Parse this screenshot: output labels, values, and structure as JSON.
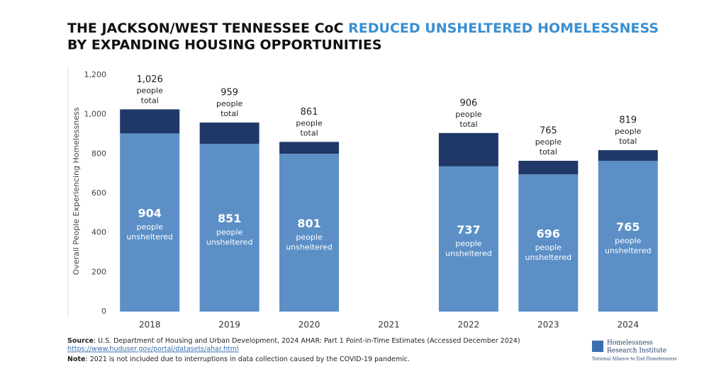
{
  "chart_data": {
    "type": "stacked-bar",
    "title": "THE JACKSON/WEST TENNESSEE CoC",
    "title_highlight": "REDUCED UNSHELTERED HOMELESSNESS",
    "title_line2": "BY EXPANDING HOUSING OPPORTUNITIES",
    "y_label": "Overall People Experiencing Homelessness",
    "categories": [
      "2018",
      "2019",
      "2020",
      "2021",
      "2022",
      "2023",
      "2024"
    ],
    "series": [
      {
        "color": "#5b8fc6",
        "values": [
          904,
          851,
          801,
          null,
          737,
          696,
          765
        ]
      },
      {
        "color": "#1f3868",
        "values": [
          122,
          108,
          60,
          null,
          169,
          69,
          54
        ]
      }
    ],
    "totals": {
      "values": [
        1026,
        959,
        861,
        null,
        906,
        765,
        819
      ],
      "value_labels": [
        "1,026",
        "959",
        "861",
        null,
        "906",
        "765",
        "819"
      ]
    },
    "unit_word": "people",
    "total_word": "total",
    "unsheltered_word": "unsheltered",
    "ylim": [
      0,
      1200
    ],
    "yticks": [
      0,
      200,
      400,
      600,
      800,
      {
        "value": 1000,
        "label": "1,000"
      },
      {
        "value": 1200,
        "label": "1,200"
      }
    ],
    "source_label": "Source",
    "source_text": ": U.S. Department of Housing and Urban Development, 2024 AHAR: Part 1 Point-in-Time Estimates (Accessed December 2024)",
    "source_url": "https://www.huduser.gov/portal/datasets/ahar.html",
    "note_label": "Note",
    "note_text": ": 2021 is not included due to interruptions in data collection caused by the COVID-19 pandemic.",
    "logo": [
      "Homelessness",
      "Research Institute",
      "National Alliance to End Homelessness"
    ]
  }
}
